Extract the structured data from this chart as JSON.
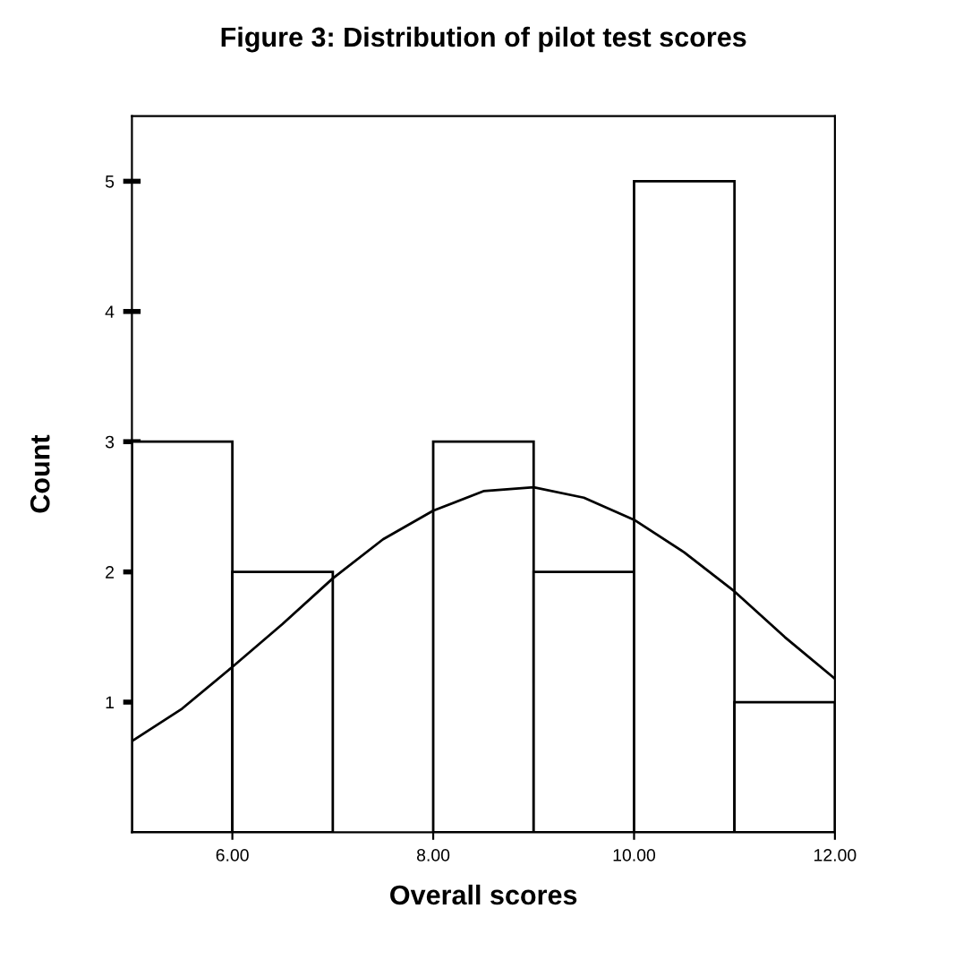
{
  "chart_data": {
    "type": "histogram",
    "title": "Figure 3: Distribution of pilot test scores",
    "xlabel": "Overall scores",
    "ylabel": "Count",
    "series": [
      {
        "bins": [
          5,
          6,
          7,
          8,
          9,
          10,
          11,
          12
        ],
        "values": [
          3,
          2,
          0,
          3,
          2,
          5,
          1
        ],
        "color": "#ffffff"
      },
      {
        "type": "line",
        "x": [
          5,
          5.5,
          6,
          6.5,
          7,
          7.5,
          8,
          8.5,
          9,
          9.5,
          10,
          10.5,
          11,
          11.5,
          12
        ],
        "values": [
          0.7,
          0.95,
          1.27,
          1.6,
          1.95,
          2.25,
          2.47,
          2.62,
          2.65,
          2.57,
          2.4,
          2.15,
          1.85,
          1.5,
          1.18
        ],
        "color": "#000000"
      }
    ],
    "xlim": [
      5,
      12
    ],
    "xticks": [
      {
        "value": 6,
        "label": "6.00"
      },
      {
        "value": 8,
        "label": "8.00"
      },
      {
        "value": 10,
        "label": "10.00"
      },
      {
        "value": 12,
        "label": "12.00"
      }
    ],
    "ylim": [
      0,
      5.5
    ],
    "yticks": [
      1,
      2,
      3,
      4,
      5
    ],
    "grid": false,
    "legend": false
  }
}
